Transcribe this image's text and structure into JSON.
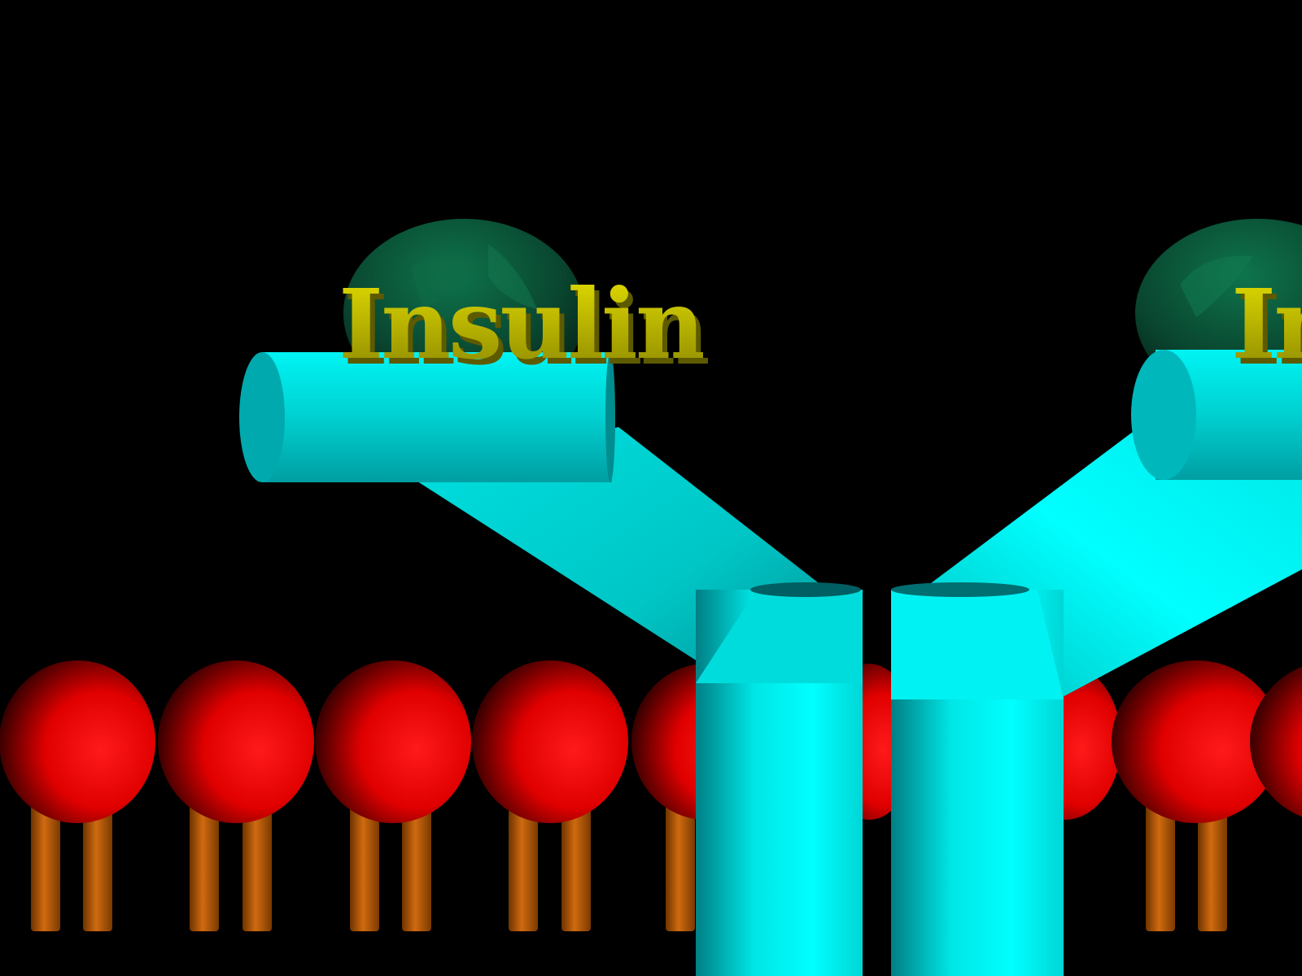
{
  "colors": {
    "background": "#000000",
    "receptor": "#00ffff",
    "receptor_shade": "#00a7a7",
    "insulin_sphere": "#0b5a3a",
    "insulin_label": "#c9c400",
    "phospholipid_head": "#ff0000",
    "phospholipid_tail": "#c05a00"
  },
  "labels": {
    "left_insulin": "Insulin",
    "right_insulin": "Insulin"
  },
  "membrane": {
    "phospholipid_count_visible": 9
  }
}
